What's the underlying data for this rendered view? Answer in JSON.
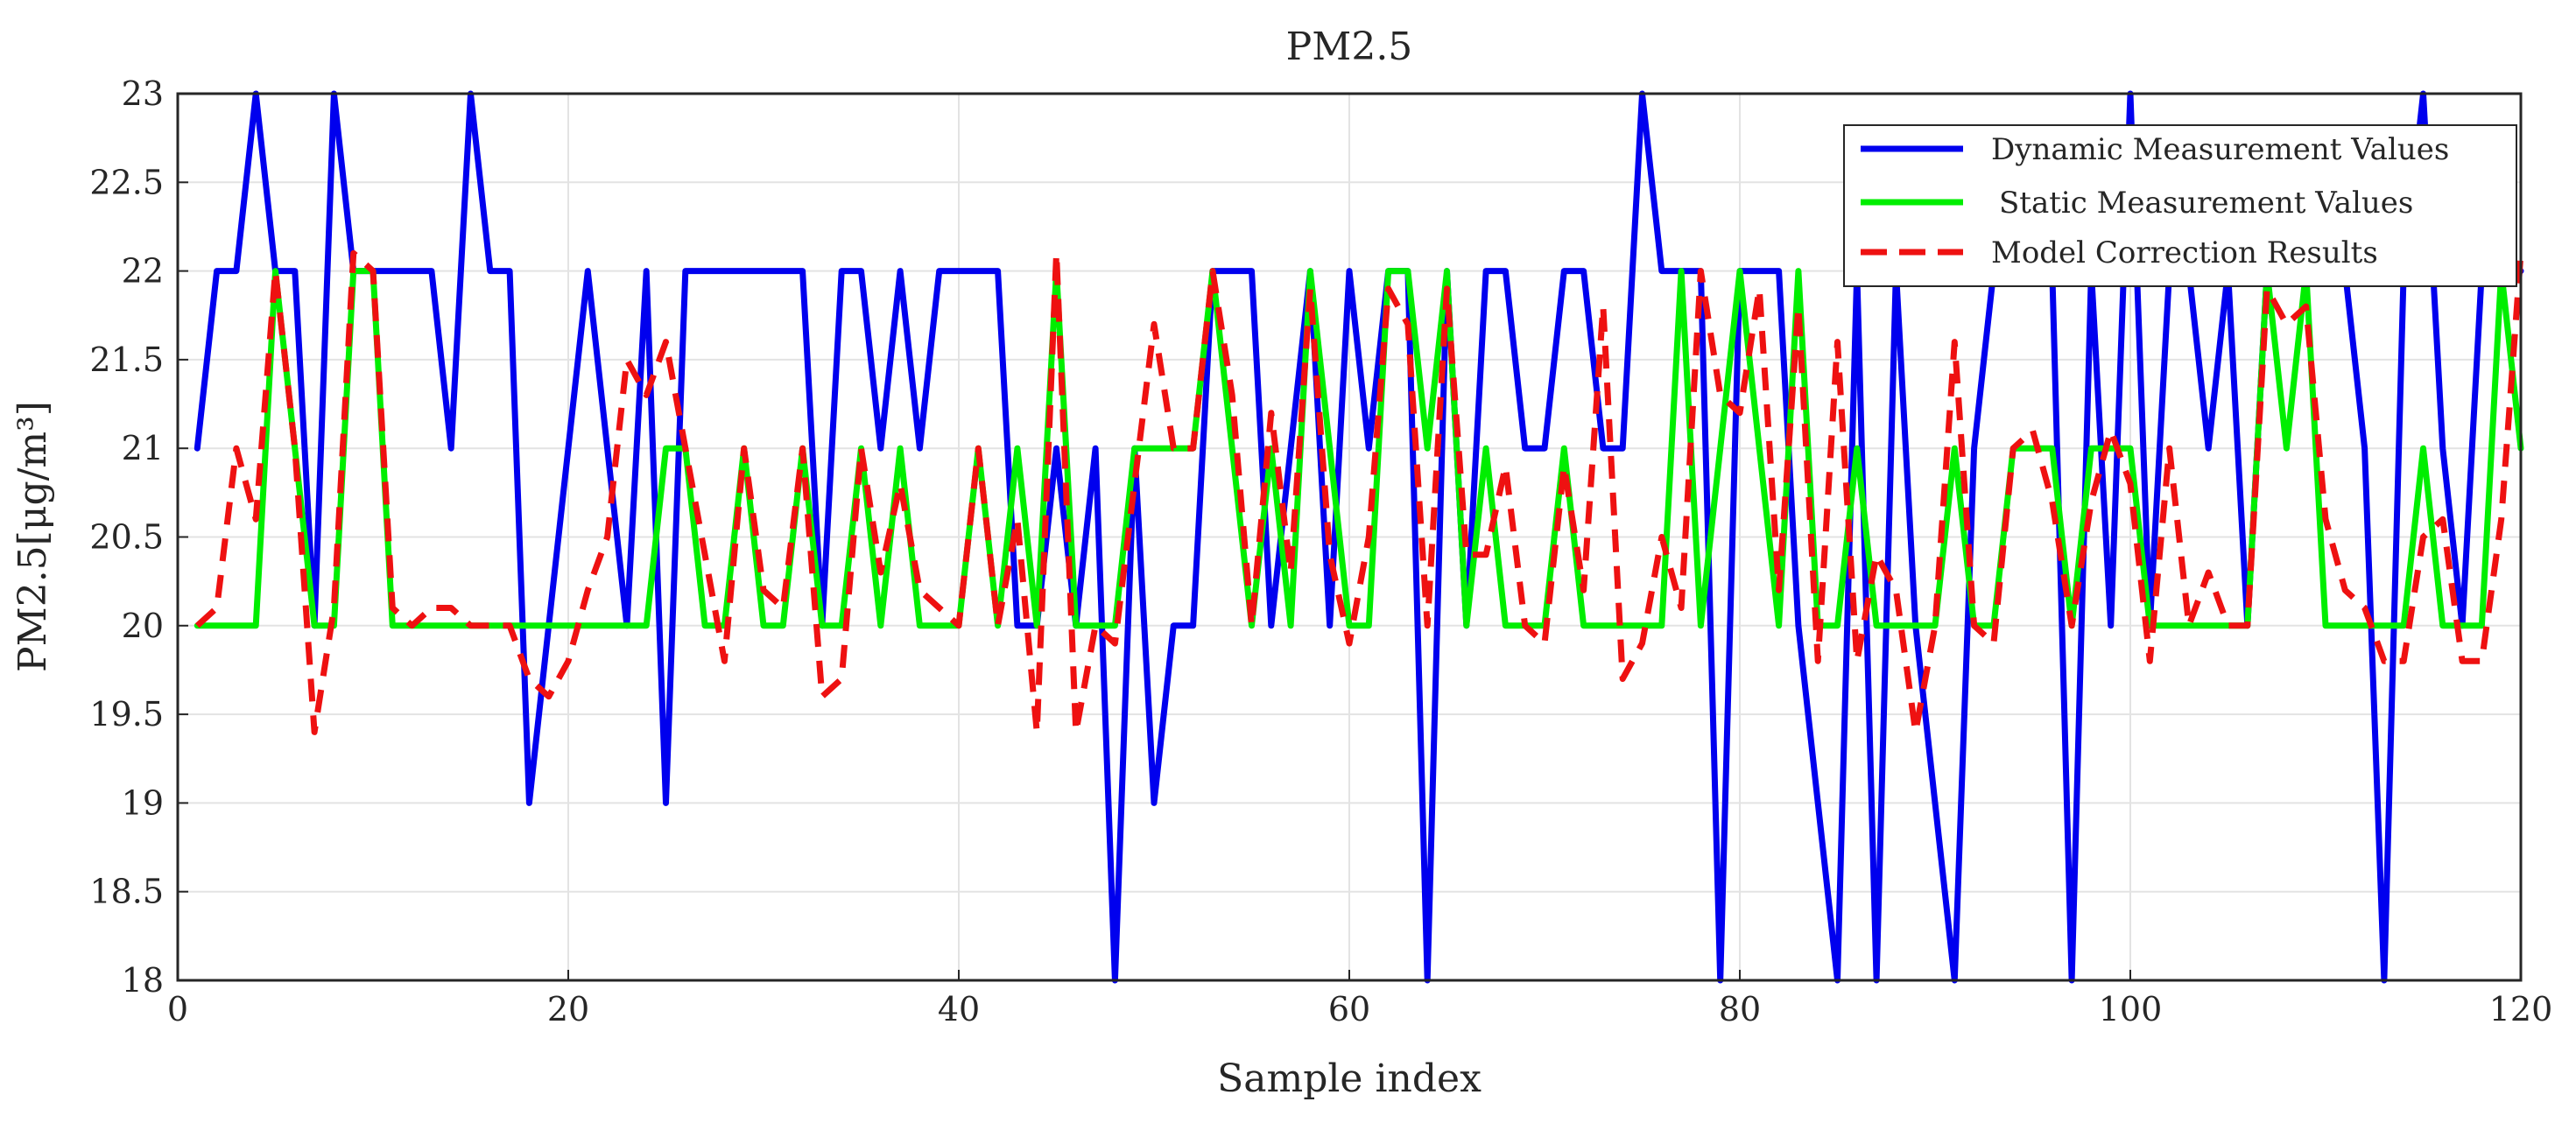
{
  "chart_data": {
    "type": "line",
    "title": "PM2.5",
    "xlabel": "Sample index",
    "ylabel": "PM2.5[μg/m³]",
    "xlim": [
      0,
      120
    ],
    "ylim": [
      18,
      23
    ],
    "xticks": [
      0,
      20,
      40,
      60,
      80,
      100,
      120
    ],
    "yticks": [
      18,
      18.5,
      19,
      19.5,
      20,
      20.5,
      21,
      21.5,
      22,
      22.5,
      23
    ],
    "grid": true,
    "legend_position": "top-right",
    "series": [
      {
        "name": "Dynamic Measurement Values",
        "color": "#0000ee",
        "dash": "solid",
        "x": [
          1,
          2,
          3,
          4,
          5,
          6,
          7,
          8,
          9,
          10,
          11,
          12,
          13,
          14,
          15,
          16,
          17,
          18,
          19,
          20,
          21,
          22,
          23,
          24,
          25,
          26,
          27,
          28,
          29,
          30,
          31,
          32,
          33,
          34,
          35,
          36,
          37,
          38,
          39,
          40,
          41,
          42,
          43,
          44,
          45,
          46,
          47,
          48,
          49,
          50,
          51,
          52,
          53,
          54,
          55,
          56,
          57,
          58,
          59,
          60,
          61,
          62,
          63,
          64,
          65,
          66,
          67,
          68,
          69,
          70,
          71,
          72,
          73,
          74,
          75,
          76,
          77,
          78,
          79,
          80,
          81,
          82,
          83,
          84,
          85,
          86,
          87,
          88,
          89,
          90,
          91,
          92,
          93,
          94,
          95,
          96,
          97,
          98,
          99,
          100,
          101,
          102,
          103,
          104,
          105,
          106,
          107,
          108,
          109,
          110,
          111,
          112,
          113,
          114,
          115,
          116,
          117,
          118,
          119,
          120
        ],
        "y": [
          21,
          22,
          22,
          23,
          22,
          22,
          20,
          23,
          22,
          22,
          22,
          22,
          22,
          21,
          23,
          22,
          22,
          19,
          20,
          21,
          22,
          21,
          20,
          22,
          19,
          22,
          22,
          22,
          22,
          22,
          22,
          22,
          20,
          22,
          22,
          21,
          22,
          21,
          22,
          22,
          22,
          22,
          20,
          20,
          21,
          20,
          21,
          18,
          21,
          19,
          20,
          20,
          22,
          22,
          22,
          20,
          21,
          22,
          20,
          22,
          21,
          22,
          22,
          18,
          22,
          20,
          22,
          22,
          21,
          21,
          22,
          22,
          21,
          21,
          23,
          22,
          22,
          22,
          18,
          22,
          22,
          22,
          20,
          19,
          18,
          22,
          18,
          22,
          20,
          19,
          18,
          21,
          22,
          22,
          22,
          22,
          18,
          22,
          20,
          23,
          20,
          22,
          22,
          21,
          22,
          20,
          22,
          22,
          22,
          22,
          22,
          21,
          18,
          22,
          23,
          21,
          20,
          22,
          22,
          22
        ]
      },
      {
        "name": "Static Measurement Values",
        "color": "#00ee00",
        "dash": "solid",
        "x": [
          1,
          2,
          3,
          4,
          5,
          6,
          7,
          8,
          9,
          10,
          11,
          12,
          13,
          14,
          15,
          16,
          17,
          18,
          19,
          20,
          21,
          22,
          23,
          24,
          25,
          26,
          27,
          28,
          29,
          30,
          31,
          32,
          33,
          34,
          35,
          36,
          37,
          38,
          39,
          40,
          41,
          42,
          43,
          44,
          45,
          46,
          47,
          48,
          49,
          50,
          51,
          52,
          53,
          54,
          55,
          56,
          57,
          58,
          59,
          60,
          61,
          62,
          63,
          64,
          65,
          66,
          67,
          68,
          69,
          70,
          71,
          72,
          73,
          74,
          75,
          76,
          77,
          78,
          79,
          80,
          81,
          82,
          83,
          84,
          85,
          86,
          87,
          88,
          89,
          90,
          91,
          92,
          93,
          94,
          95,
          96,
          97,
          98,
          99,
          100,
          101,
          102,
          103,
          104,
          105,
          106,
          107,
          108,
          109,
          110,
          111,
          112,
          113,
          114,
          115,
          116,
          117,
          118,
          119,
          120
        ],
        "y": [
          20,
          20,
          20,
          20,
          22,
          21,
          20,
          20,
          22,
          22,
          20,
          20,
          20,
          20,
          20,
          20,
          20,
          20,
          20,
          20,
          20,
          20,
          20,
          20,
          21,
          21,
          20,
          20,
          21,
          20,
          20,
          21,
          20,
          20,
          21,
          20,
          21,
          20,
          20,
          20,
          21,
          20,
          21,
          20,
          22,
          20,
          20,
          20,
          21,
          21,
          21,
          21,
          22,
          21,
          20,
          21,
          20,
          22,
          21,
          20,
          20,
          22,
          22,
          21,
          22,
          20,
          21,
          20,
          20,
          20,
          21,
          20,
          20,
          20,
          20,
          20,
          22,
          20,
          21,
          22,
          21,
          20,
          22,
          20,
          20,
          21,
          20,
          20,
          20,
          20,
          21,
          20,
          20,
          21,
          21,
          21,
          20,
          21,
          21,
          21,
          20,
          20,
          20,
          20,
          20,
          20,
          22,
          21,
          22,
          20,
          20,
          20,
          20,
          20,
          21,
          20,
          20,
          20,
          22,
          21
        ]
      },
      {
        "name": "Model Correction Results",
        "color": "#ee1111",
        "dash": "dashed",
        "x": [
          1,
          2,
          3,
          4,
          5,
          6,
          7,
          8,
          9,
          10,
          11,
          12,
          13,
          14,
          15,
          16,
          17,
          18,
          19,
          20,
          21,
          22,
          23,
          24,
          25,
          26,
          27,
          28,
          29,
          30,
          31,
          32,
          33,
          34,
          35,
          36,
          37,
          38,
          39,
          40,
          41,
          42,
          43,
          44,
          45,
          46,
          47,
          48,
          49,
          50,
          51,
          52,
          53,
          54,
          55,
          56,
          57,
          58,
          59,
          60,
          61,
          62,
          63,
          64,
          65,
          66,
          67,
          68,
          69,
          70,
          71,
          72,
          73,
          74,
          75,
          76,
          77,
          78,
          79,
          80,
          81,
          82,
          83,
          84,
          85,
          86,
          87,
          88,
          89,
          90,
          91,
          92,
          93,
          94,
          95,
          96,
          97,
          98,
          99,
          100,
          101,
          102,
          103,
          104,
          105,
          106,
          107,
          108,
          109,
          110,
          111,
          112,
          113,
          114,
          115,
          116,
          117,
          118,
          119,
          120
        ],
        "y": [
          20,
          20.1,
          21,
          20.6,
          22,
          21,
          19.4,
          20.1,
          22.1,
          22,
          20.1,
          20,
          20.1,
          20.1,
          20,
          20,
          20,
          19.7,
          19.6,
          19.8,
          20.2,
          20.5,
          21.5,
          21.3,
          21.6,
          21,
          20.4,
          19.8,
          21,
          20.2,
          20.1,
          21,
          19.6,
          19.7,
          21,
          20.3,
          20.8,
          20.2,
          20.1,
          20,
          21,
          20,
          20.6,
          19.4,
          22.1,
          19.4,
          20,
          19.9,
          20.8,
          21.7,
          21,
          21,
          22,
          21.3,
          20,
          21.2,
          20.3,
          21.9,
          20.4,
          19.9,
          20.5,
          21.9,
          21.7,
          20,
          21.9,
          20.4,
          20.4,
          20.9,
          20,
          19.9,
          20.9,
          20.2,
          21.8,
          19.7,
          19.9,
          20.5,
          20.1,
          22,
          21.3,
          21.2,
          21.9,
          20.2,
          21.8,
          19.8,
          21.6,
          19.8,
          20.4,
          20.2,
          19.4,
          20,
          21.6,
          20,
          19.9,
          21,
          21.1,
          20.7,
          20,
          20.7,
          21.1,
          20.8,
          19.8,
          21,
          20,
          20.3,
          20,
          20,
          21.9,
          21.7,
          21.8,
          20.6,
          20.2,
          20.1,
          19.8,
          19.8,
          20.5,
          20.6,
          19.8,
          19.8,
          20.6,
          22.1
        ]
      }
    ]
  }
}
